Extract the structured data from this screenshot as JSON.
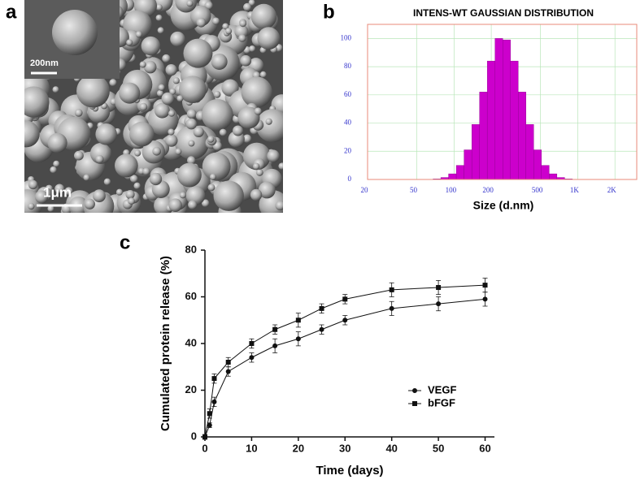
{
  "chart_data": [
    {
      "type": "image",
      "label": "a",
      "scale_bars": [
        "200nm",
        "1μm"
      ]
    },
    {
      "type": "histogram",
      "label": "b",
      "title": "INTENS-WT GAUSSIAN DISTRIBUTION",
      "x_label": "Size (d.nm)",
      "xscale": "log",
      "xlim": [
        20,
        3000
      ],
      "ylim": [
        0,
        110
      ],
      "xticks": [
        20,
        50,
        100,
        200,
        500,
        {
          "value": 1000,
          "label": "1K"
        },
        {
          "value": 2000,
          "label": "2K"
        }
      ],
      "yticks": [
        0,
        20,
        40,
        60,
        80,
        100
      ],
      "grid": true,
      "color": "#cc00cc",
      "bins": [
        67.7,
        78.2,
        90.3,
        104.3,
        120.5,
        139.2,
        160.7,
        185.6,
        214.4,
        247.6,
        286.0,
        330.3,
        381.5,
        440.6,
        508.9,
        587.8,
        678.9,
        784.1,
        905.6
      ],
      "counts": [
        0.4,
        1.4,
        4,
        10,
        21,
        39,
        62,
        84,
        100,
        99,
        84,
        62,
        39,
        21,
        10,
        4,
        1.4,
        0.4
      ]
    },
    {
      "type": "line",
      "label": "c",
      "x_label": "Time (days)",
      "y_label": "Cumulated protein release (%)",
      "x": [
        0,
        1,
        2,
        5,
        10,
        15,
        20,
        25,
        30,
        40,
        50,
        60
      ],
      "xlim": [
        0,
        62
      ],
      "ylim": [
        0,
        80
      ],
      "xticks": [
        0,
        10,
        20,
        30,
        40,
        50,
        60
      ],
      "yticks": [
        0,
        20,
        40,
        60,
        80
      ],
      "legend": "right",
      "series": [
        {
          "name": "VEGF",
          "color": "#111111",
          "marker": "circle",
          "values": [
            0,
            5,
            15,
            28,
            34,
            39,
            42,
            46,
            50,
            55,
            57,
            59
          ],
          "errors": [
            1,
            1,
            2,
            2,
            2,
            3,
            3,
            2,
            2,
            3,
            3,
            3
          ]
        },
        {
          "name": "bFGF",
          "color": "#111111",
          "marker": "square",
          "values": [
            0,
            10,
            25,
            32,
            40,
            46,
            50,
            55,
            59,
            63,
            64,
            65
          ],
          "errors": [
            1,
            2,
            2,
            2,
            2,
            2,
            3,
            2,
            2,
            3,
            3,
            3
          ]
        }
      ]
    }
  ]
}
